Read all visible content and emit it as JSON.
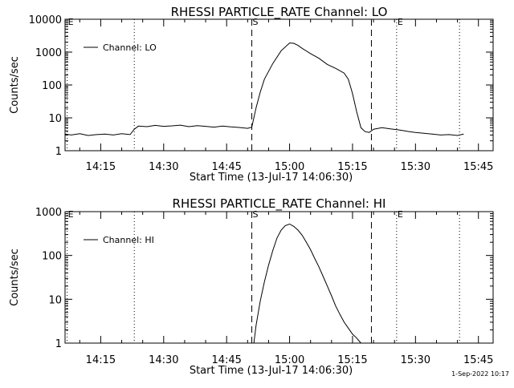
{
  "footer": {
    "timestamp": "1-Sep-2022 10:17"
  },
  "chart_data": [
    {
      "type": "line",
      "title": "RHESSI PARTICLE_RATE Channel: LO",
      "xlabel": "Start Time (13-Jul-17 14:06:30)",
      "ylabel": "Counts/sec",
      "yscale": "log",
      "ylim": [
        1,
        10000
      ],
      "xlim": [
        "14:06:30",
        "15:48:30"
      ],
      "x_ticks": [
        "14:15",
        "14:30",
        "14:45",
        "15:00",
        "15:15",
        "15:30",
        "15:45"
      ],
      "y_ticks": [
        "1",
        "10",
        "100",
        "1000",
        "10000"
      ],
      "legend": {
        "label": "Channel: LO",
        "position": "top-left"
      },
      "markers": [
        {
          "time": "14:07:00",
          "style": "dotted",
          "label": "E"
        },
        {
          "time": "14:23:00",
          "style": "dotted",
          "label": ""
        },
        {
          "time": "14:51:00",
          "style": "dashed",
          "label": "S"
        },
        {
          "time": "15:19:30",
          "style": "dashed",
          "label": ""
        },
        {
          "time": "15:25:30",
          "style": "dotted",
          "label": "E"
        },
        {
          "time": "15:40:30",
          "style": "dotted",
          "label": ""
        }
      ],
      "series": [
        {
          "name": "Channel: LO",
          "x": [
            "14:06:30",
            "14:08:00",
            "14:10:00",
            "14:12:00",
            "14:14:00",
            "14:16:00",
            "14:18:00",
            "14:20:00",
            "14:22:00",
            "14:23:00",
            "14:24:00",
            "14:26:00",
            "14:28:00",
            "14:30:00",
            "14:32:00",
            "14:34:00",
            "14:36:00",
            "14:38:00",
            "14:40:00",
            "14:42:00",
            "14:44:00",
            "14:46:00",
            "14:48:00",
            "14:50:00",
            "14:51:00",
            "14:52:00",
            "14:53:00",
            "14:54:00",
            "14:56:00",
            "14:58:00",
            "15:00:00",
            "15:01:00",
            "15:02:00",
            "15:03:00",
            "15:05:00",
            "15:07:00",
            "15:09:00",
            "15:11:00",
            "15:13:00",
            "15:14:00",
            "15:15:00",
            "15:16:00",
            "15:17:00",
            "15:18:00",
            "15:19:00",
            "15:20:00",
            "15:22:00",
            "15:24:00",
            "15:26:00",
            "15:28:00",
            "15:30:00",
            "15:32:00",
            "15:34:00",
            "15:36:00",
            "15:38:00",
            "15:40:00",
            "15:41:30"
          ],
          "y": [
            3.2,
            3.0,
            3.3,
            2.9,
            3.1,
            3.2,
            3.0,
            3.3,
            3.1,
            4.5,
            5.6,
            5.4,
            5.9,
            5.5,
            5.7,
            6.0,
            5.4,
            5.8,
            5.5,
            5.2,
            5.6,
            5.3,
            5.1,
            4.8,
            5.2,
            20,
            60,
            150,
            450,
            1100,
            1900,
            1850,
            1600,
            1300,
            900,
            650,
            420,
            320,
            230,
            150,
            55,
            15,
            5.0,
            3.8,
            3.6,
            4.5,
            5.0,
            4.6,
            4.3,
            3.9,
            3.6,
            3.4,
            3.2,
            3.0,
            3.1,
            2.9,
            3.2
          ]
        }
      ]
    },
    {
      "type": "line",
      "title": "RHESSI PARTICLE_RATE Channel: HI",
      "xlabel": "Start Time (13-Jul-17 14:06:30)",
      "ylabel": "Counts/sec",
      "yscale": "log",
      "ylim": [
        1,
        1000
      ],
      "xlim": [
        "14:06:30",
        "15:48:30"
      ],
      "x_ticks": [
        "14:15",
        "14:30",
        "14:45",
        "15:00",
        "15:15",
        "15:30",
        "15:45"
      ],
      "y_ticks": [
        "1",
        "10",
        "100",
        "1000"
      ],
      "legend": {
        "label": "Channel: HI",
        "position": "top-left"
      },
      "markers": [
        {
          "time": "14:07:00",
          "style": "dotted",
          "label": "E"
        },
        {
          "time": "14:23:00",
          "style": "dotted",
          "label": ""
        },
        {
          "time": "14:51:00",
          "style": "dashed",
          "label": "S"
        },
        {
          "time": "15:19:30",
          "style": "dashed",
          "label": ""
        },
        {
          "time": "15:25:30",
          "style": "dotted",
          "label": "E"
        },
        {
          "time": "15:40:30",
          "style": "dotted",
          "label": ""
        }
      ],
      "series": [
        {
          "name": "Channel: HI",
          "x": [
            "14:51:30",
            "14:52:00",
            "14:53:00",
            "14:54:00",
            "14:55:00",
            "14:56:00",
            "14:57:00",
            "14:58:00",
            "14:59:00",
            "15:00:00",
            "15:01:00",
            "15:02:00",
            "15:03:00",
            "15:04:00",
            "15:05:00",
            "15:06:00",
            "15:07:00",
            "15:08:00",
            "15:09:00",
            "15:10:00",
            "15:11:00",
            "15:12:00",
            "15:13:00",
            "15:14:00",
            "15:15:00",
            "15:16:00",
            "15:17:00"
          ],
          "y": [
            1.0,
            2.5,
            9,
            25,
            60,
            130,
            250,
            380,
            480,
            520,
            460,
            380,
            290,
            200,
            135,
            85,
            55,
            33,
            20,
            12,
            7,
            4.5,
            3.0,
            2.2,
            1.6,
            1.3,
            1.0
          ]
        }
      ]
    }
  ]
}
